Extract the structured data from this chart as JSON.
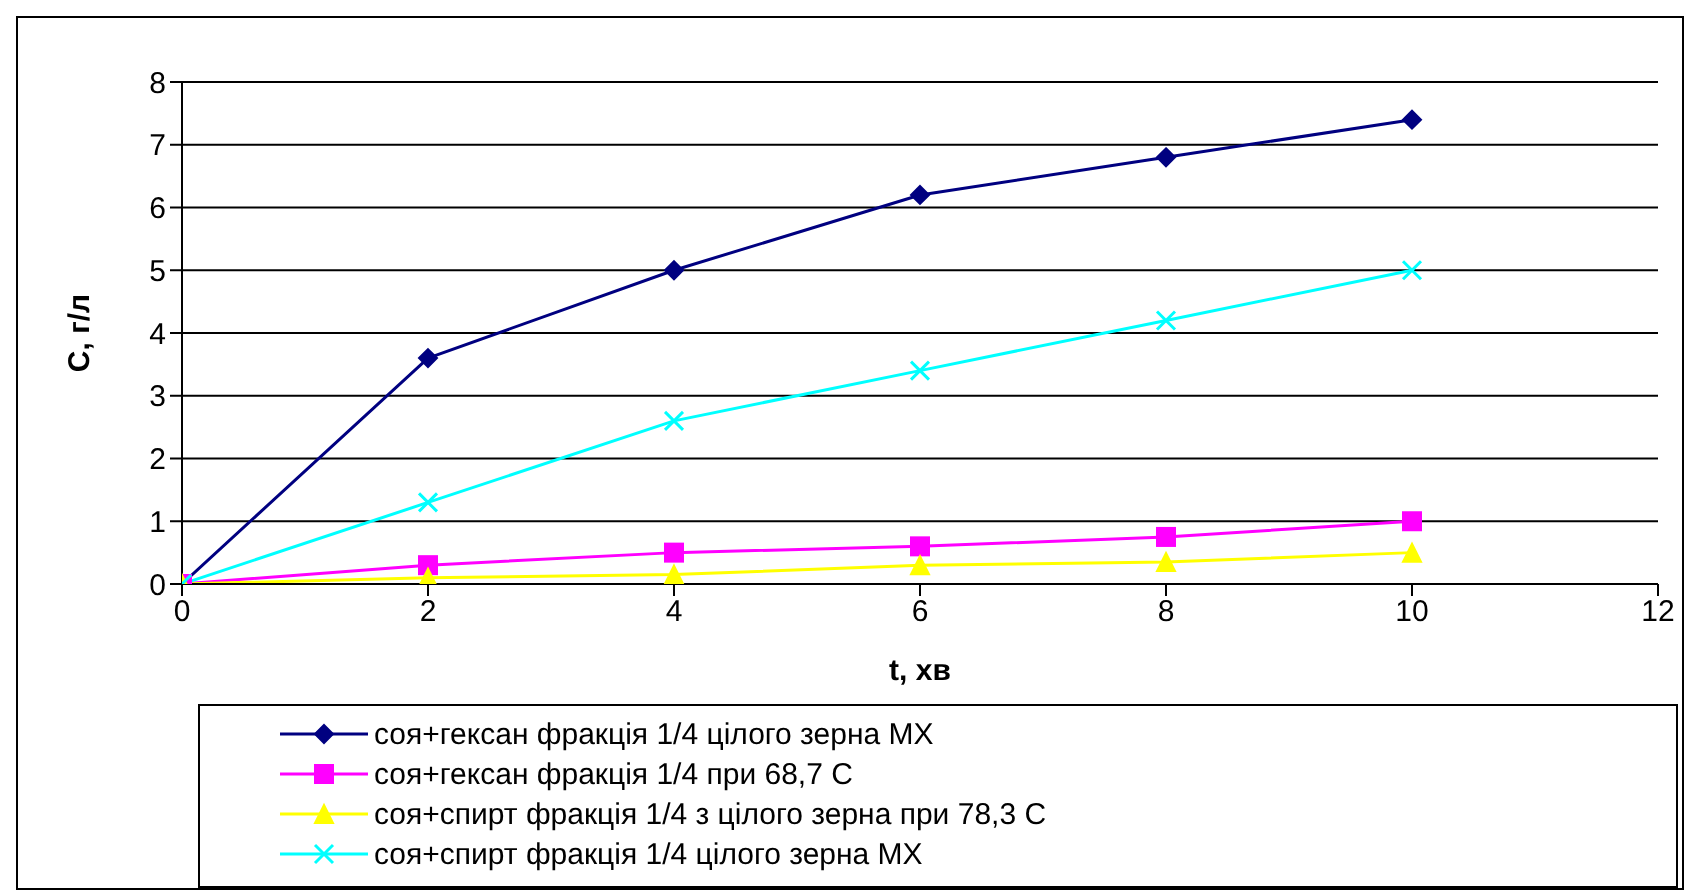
{
  "chart_data": {
    "type": "line",
    "xlabel": "t, хв",
    "ylabel": "C, г/л",
    "x": [
      0,
      2,
      4,
      6,
      8,
      10
    ],
    "xlim": [
      0,
      12
    ],
    "xticks": [
      0,
      2,
      4,
      6,
      8,
      10,
      12
    ],
    "ylim": [
      0,
      8
    ],
    "yticks": [
      0,
      1,
      2,
      3,
      4,
      5,
      6,
      7,
      8
    ],
    "grid": "y",
    "legend": "bottom",
    "line_style": "solid",
    "series": [
      {
        "name": "соя+гексан фракція 1/4 цілого зерна МХ",
        "color": "#000080",
        "marker": "diamond",
        "values": [
          0,
          3.6,
          5.0,
          6.2,
          6.8,
          7.4
        ]
      },
      {
        "name": "соя+гексан фракція 1/4 при 68,7 С",
        "color": "#ff00ff",
        "marker": "square",
        "values": [
          0,
          0.3,
          0.5,
          0.6,
          0.75,
          1.0
        ]
      },
      {
        "name": "соя+спирт фракція 1/4 з цілого зерна при 78,3 С",
        "color": "#ffff00",
        "marker": "triangle",
        "values": [
          0,
          0.1,
          0.15,
          0.3,
          0.35,
          0.5
        ]
      },
      {
        "name": "соя+спирт фракція 1/4 цілого зерна МХ",
        "color": "#00ffff",
        "marker": "cross",
        "values": [
          0,
          1.3,
          2.6,
          3.4,
          4.2,
          5.0
        ]
      }
    ]
  }
}
